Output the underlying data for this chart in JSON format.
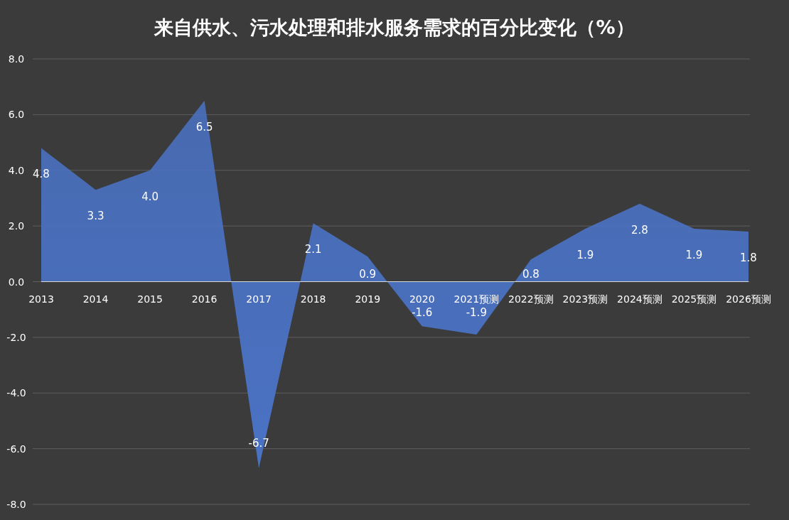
{
  "chart_data": {
    "type": "area",
    "title": "来自供水、污水处理和排水服务需求的百分比变化（%）",
    "categories": [
      "2013",
      "2014",
      "2015",
      "2016",
      "2017",
      "2018",
      "2019",
      "2020",
      "2021预测",
      "2022预测",
      "2023预测",
      "2024预测",
      "2025预测",
      "2026预测"
    ],
    "values": [
      4.8,
      3.3,
      4.0,
      6.5,
      -6.7,
      2.1,
      0.9,
      -1.6,
      -1.9,
      0.8,
      1.9,
      2.8,
      1.9,
      1.8
    ],
    "color": "#4a72c4",
    "ylim": [
      -8,
      8
    ],
    "yticks": [
      {
        "value": -8,
        "label": "-8.0"
      },
      {
        "value": -6,
        "label": "-6.0"
      },
      {
        "value": -4,
        "label": "-4.0"
      },
      {
        "value": -2,
        "label": "-2.0"
      },
      {
        "value": 0,
        "label": "0.0"
      },
      {
        "value": 2,
        "label": "2.0"
      },
      {
        "value": 4,
        "label": "4.0"
      },
      {
        "value": 6,
        "label": "6.0"
      },
      {
        "value": 8,
        "label": "8.0"
      }
    ],
    "grid": "y",
    "value_labels": [
      "4.8",
      "3.3",
      "4.0",
      "6.5",
      "-6.7",
      "2.1",
      "0.9",
      "-1.6",
      "-1.9",
      "0.8",
      "1.9",
      "2.8",
      "1.9",
      "1.8"
    ]
  }
}
